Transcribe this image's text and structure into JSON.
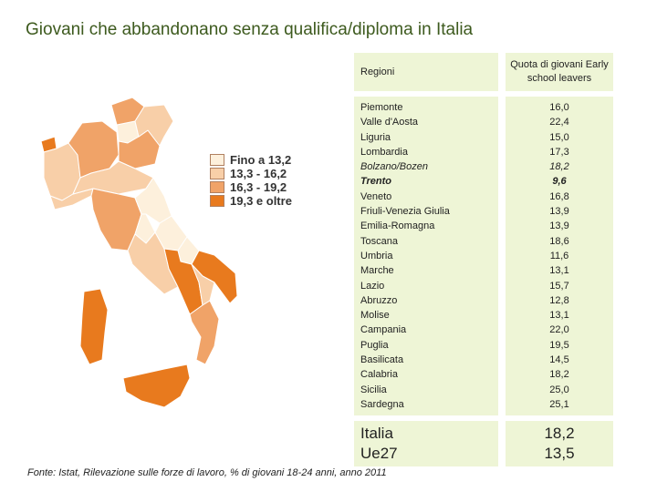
{
  "title": "Giovani che abbandonano senza qualifica/diploma in Italia",
  "legend": [
    {
      "label": "Fino a 13,2",
      "color": "#fdf0dc"
    },
    {
      "label": "13,3 - 16,2",
      "color": "#f8cfa8"
    },
    {
      "label": "16,3 - 19,2",
      "color": "#f0a368"
    },
    {
      "label": "19,3 e oltre",
      "color": "#e87a1e"
    }
  ],
  "table": {
    "header_region": "Regioni",
    "header_value": "Quota di giovani Early school leavers",
    "rows": [
      {
        "region": "Piemonte",
        "value": "16,0",
        "style": ""
      },
      {
        "region": "Valle d'Aosta",
        "value": "22,4",
        "style": ""
      },
      {
        "region": "Liguria",
        "value": "15,0",
        "style": ""
      },
      {
        "region": "Lombardia",
        "value": "17,3",
        "style": ""
      },
      {
        "region": "Bolzano/Bozen",
        "value": "18,2",
        "style": "it"
      },
      {
        "region": "Trento",
        "value": "9,6",
        "style": "bi"
      },
      {
        "region": "Veneto",
        "value": "16,8",
        "style": ""
      },
      {
        "region": "Friuli-Venezia Giulia",
        "value": "13,9",
        "style": ""
      },
      {
        "region": "Emilia-Romagna",
        "value": "13,9",
        "style": ""
      },
      {
        "region": "Toscana",
        "value": "18,6",
        "style": ""
      },
      {
        "region": "Umbria",
        "value": "11,6",
        "style": ""
      },
      {
        "region": "Marche",
        "value": "13,1",
        "style": ""
      },
      {
        "region": "Lazio",
        "value": "15,7",
        "style": ""
      },
      {
        "region": "Abruzzo",
        "value": "12,8",
        "style": ""
      },
      {
        "region": "Molise",
        "value": "13,1",
        "style": ""
      },
      {
        "region": "Campania",
        "value": "22,0",
        "style": ""
      },
      {
        "region": "Puglia",
        "value": "19,5",
        "style": ""
      },
      {
        "region": "Basilicata",
        "value": "14,5",
        "style": ""
      },
      {
        "region": "Calabria",
        "value": "18,2",
        "style": ""
      },
      {
        "region": "Sicilia",
        "value": "25,0",
        "style": ""
      },
      {
        "region": "Sardegna",
        "value": "25,1",
        "style": ""
      }
    ],
    "totals": [
      {
        "region": "Italia",
        "value": "18,2"
      },
      {
        "region": "Ue27",
        "value": "13,5"
      }
    ]
  },
  "source": "Fonte: Istat, Rilevazione sulle forze di lavoro, % di giovani 18-24 anni, anno 2011"
}
